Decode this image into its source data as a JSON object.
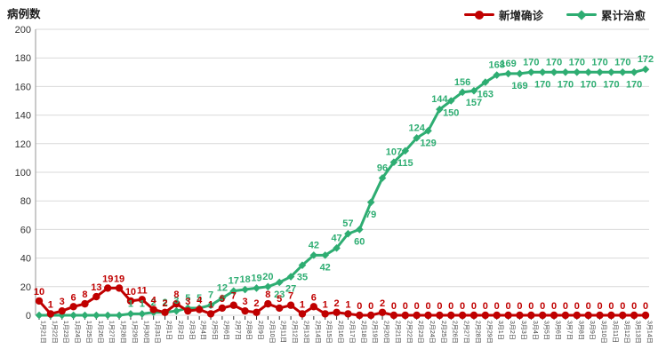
{
  "title": "病例数",
  "legend": [
    {
      "label": "新增确诊",
      "color": "#C00000",
      "marker": "circle"
    },
    {
      "label": "累计治愈",
      "color": "#2EAD72",
      "marker": "diamond"
    }
  ],
  "chart_data": {
    "type": "line",
    "title": "病例数",
    "ylabel": "病例数",
    "xlabel": "",
    "ylim": [
      0,
      200
    ],
    "ytick_step": 20,
    "grid": "horizontal",
    "legend_position": "top-right",
    "colors": {
      "grid": "#D9D9D9",
      "axis": "#A6A6A6",
      "tick_label": "#333333",
      "date_label": "#444444"
    },
    "categories": [
      "1月21日",
      "1月22日",
      "1月23日",
      "1月24日",
      "1月25日",
      "1月26日",
      "1月27日",
      "1月28日",
      "1月29日",
      "1月30日",
      "1月31日",
      "2月1日",
      "2月2日",
      "2月3日",
      "2月4日",
      "2月5日",
      "2月6日",
      "2月7日",
      "2月8日",
      "2月9日",
      "2月10日",
      "2月11日",
      "2月12日",
      "2月13日",
      "2月14日",
      "2月15日",
      "2月16日",
      "2月17日",
      "2月18日",
      "2月19日",
      "2月20日",
      "2月21日",
      "2月22日",
      "2月23日",
      "2月24日",
      "2月25日",
      "2月26日",
      "2月27日",
      "2月28日",
      "2月29日",
      "3月1日",
      "3月2日",
      "3月3日",
      "3月4日",
      "3月5日",
      "3月6日",
      "3月7日",
      "3月8日",
      "3月9日",
      "3月10日",
      "3月11日",
      "3月12日",
      "3月13日",
      "3月14日"
    ],
    "series": [
      {
        "name": "新增确诊",
        "color": "#C00000",
        "marker": "circle",
        "values": [
          10,
          1,
          3,
          6,
          8,
          13,
          19,
          19,
          10,
          11,
          4,
          2,
          8,
          3,
          4,
          1,
          5,
          7,
          3,
          2,
          8,
          5,
          7,
          1,
          6,
          1,
          2,
          1,
          0,
          0,
          2,
          0,
          0,
          0,
          0,
          0,
          0,
          0,
          0,
          0,
          0,
          0,
          0,
          0,
          0,
          0,
          0,
          0,
          0,
          0,
          0,
          0,
          0,
          0
        ]
      },
      {
        "name": "累计治愈",
        "color": "#2EAD72",
        "marker": "diamond",
        "values": [
          0,
          0,
          0,
          0,
          0,
          0,
          0,
          0,
          1,
          1,
          2,
          2,
          3,
          5,
          5,
          7,
          12,
          17,
          18,
          19,
          20,
          23,
          27,
          35,
          42,
          42,
          47,
          57,
          60,
          79,
          96,
          107,
          115,
          124,
          129,
          144,
          150,
          156,
          157,
          163,
          168,
          169,
          169,
          170,
          170,
          170,
          170,
          170,
          170,
          170,
          170,
          170,
          170,
          172
        ]
      }
    ]
  }
}
